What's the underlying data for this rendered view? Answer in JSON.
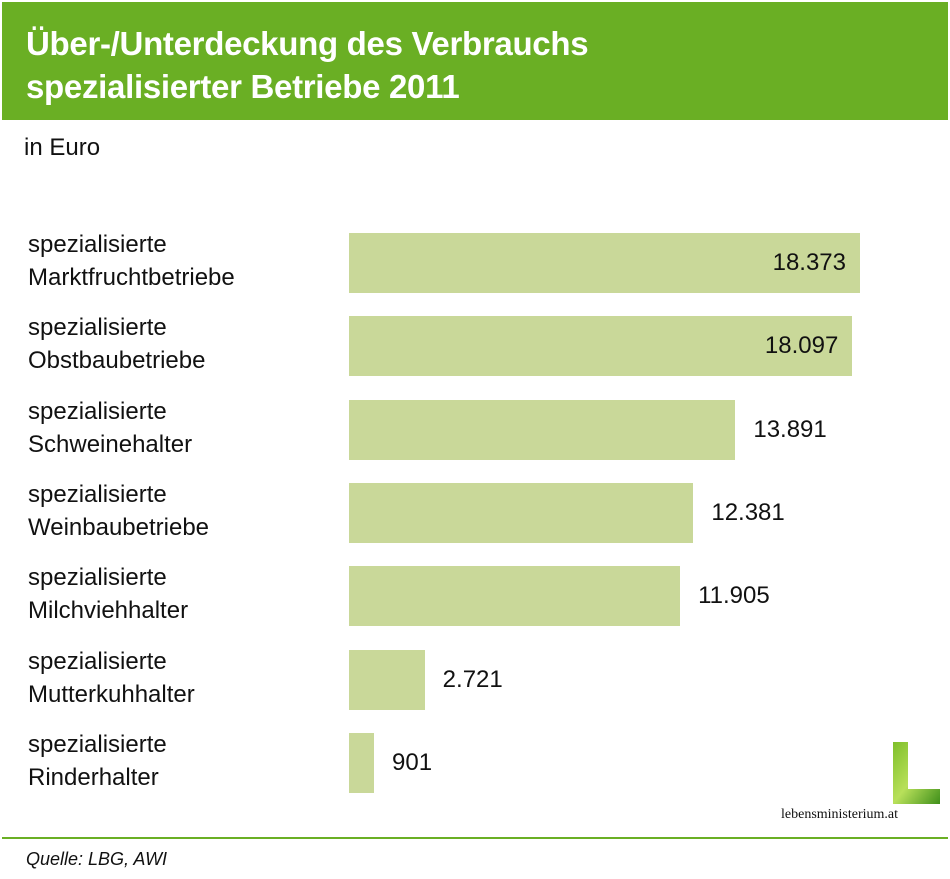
{
  "header": {
    "title_line1": "Über-/Unterdeckung des Verbrauchs",
    "title_line2": "spezialisierter Betriebe 2011",
    "subtitle": "in Euro"
  },
  "colors": {
    "header": "#6aaf24",
    "bar": "#c9d899",
    "rule": "#6aaf24"
  },
  "chart_data": {
    "type": "bar",
    "orientation": "horizontal",
    "title": "Über-/Unterdeckung des Verbrauchs spezialisierter Betriebe 2011",
    "unit": "in Euro",
    "categories": [
      [
        "spezialisierte",
        "Marktfruchtbetriebe"
      ],
      [
        "spezialisierte",
        "Obstbaubetriebe"
      ],
      [
        "spezialisierte",
        "Schweinehalter"
      ],
      [
        "spezialisierte",
        "Weinbaubetriebe"
      ],
      [
        "spezialisierte",
        "Milchviehhalter"
      ],
      [
        "spezialisierte",
        "Mutterkuhhalter"
      ],
      [
        "spezialisierte",
        "Rinderhalter"
      ]
    ],
    "values": [
      18373,
      18097,
      13891,
      12381,
      11905,
      2721,
      901
    ],
    "value_labels": [
      "18.373",
      "18.097",
      "13.891",
      "12.381",
      "11.905",
      "2.721",
      "901"
    ],
    "xlim": [
      0,
      18373
    ]
  },
  "footer": {
    "source": "Quelle: LBG, AWI",
    "logo_text": "lebensministerium.at"
  }
}
